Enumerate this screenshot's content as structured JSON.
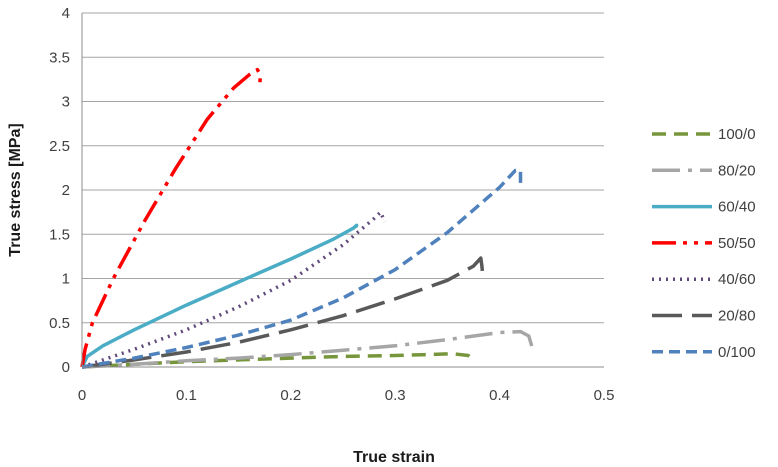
{
  "chart_data": {
    "type": "line",
    "title": "",
    "xlabel": "True strain",
    "ylabel": "True stress [MPa]",
    "xlim": [
      0,
      0.5
    ],
    "ylim": [
      0,
      4
    ],
    "xticks": [
      0,
      0.1,
      0.2,
      0.3,
      0.4,
      0.5
    ],
    "yticks": [
      0,
      0.5,
      1,
      1.5,
      2,
      2.5,
      3,
      3.5,
      4
    ],
    "xtick_labels": [
      "0",
      "0.1",
      "0.2",
      "0.3",
      "0.4",
      "0.5"
    ],
    "ytick_labels": [
      "0",
      "0.5",
      "1",
      "1.5",
      "2",
      "2.5",
      "3",
      "3.5",
      "4"
    ],
    "grid": "horizontal",
    "legend_position": "right",
    "series": [
      {
        "name": "100/0",
        "color": "#77963b",
        "dash": "14,8",
        "x": [
          0,
          0.05,
          0.1,
          0.15,
          0.2,
          0.25,
          0.3,
          0.33,
          0.355,
          0.37,
          0.372
        ],
        "y": [
          0,
          0.03,
          0.06,
          0.08,
          0.1,
          0.12,
          0.13,
          0.14,
          0.15,
          0.13,
          0.11
        ]
      },
      {
        "name": "80/20",
        "color": "#a6a6a6",
        "dash": "28,8,4,8",
        "x": [
          0,
          0.05,
          0.1,
          0.15,
          0.2,
          0.25,
          0.3,
          0.35,
          0.4,
          0.42,
          0.428,
          0.43,
          0.432
        ],
        "y": [
          0,
          0.03,
          0.07,
          0.1,
          0.14,
          0.19,
          0.24,
          0.31,
          0.39,
          0.4,
          0.35,
          0.27,
          0.18
        ]
      },
      {
        "name": "60/40",
        "color": "#4bacc6",
        "dash": "",
        "x": [
          0,
          0.005,
          0.02,
          0.05,
          0.1,
          0.15,
          0.2,
          0.24,
          0.26,
          0.263,
          0.262
        ],
        "y": [
          0,
          0.12,
          0.24,
          0.42,
          0.7,
          0.96,
          1.22,
          1.44,
          1.57,
          1.6,
          1.58
        ]
      },
      {
        "name": "50/50",
        "color": "#ff0000",
        "dash": "24,7,4,7,4,7",
        "x": [
          0,
          0.003,
          0.01,
          0.03,
          0.06,
          0.09,
          0.12,
          0.145,
          0.16,
          0.168,
          0.171,
          0.17
        ],
        "y": [
          0,
          0.2,
          0.5,
          1.0,
          1.65,
          2.25,
          2.8,
          3.15,
          3.3,
          3.36,
          3.3,
          3.15
        ]
      },
      {
        "name": "40/60",
        "color": "#604a7b",
        "dash": "2,5",
        "x": [
          0,
          0.05,
          0.1,
          0.15,
          0.2,
          0.25,
          0.28,
          0.286,
          0.29
        ],
        "y": [
          0,
          0.2,
          0.42,
          0.68,
          0.98,
          1.38,
          1.68,
          1.75,
          1.64
        ]
      },
      {
        "name": "20/80",
        "color": "#595959",
        "dash": "30,10",
        "x": [
          0,
          0.05,
          0.1,
          0.15,
          0.2,
          0.25,
          0.3,
          0.35,
          0.375,
          0.382,
          0.383,
          0.384
        ],
        "y": [
          0,
          0.08,
          0.17,
          0.28,
          0.42,
          0.58,
          0.77,
          0.98,
          1.14,
          1.23,
          1.14,
          1.02
        ]
      },
      {
        "name": "0/100",
        "color": "#4f81bd",
        "dash": "11,6",
        "x": [
          0,
          0.05,
          0.1,
          0.15,
          0.2,
          0.25,
          0.3,
          0.35,
          0.4,
          0.415,
          0.42,
          0.42
        ],
        "y": [
          0,
          0.1,
          0.22,
          0.36,
          0.53,
          0.78,
          1.1,
          1.52,
          2.03,
          2.22,
          2.22,
          2.08
        ]
      }
    ]
  }
}
